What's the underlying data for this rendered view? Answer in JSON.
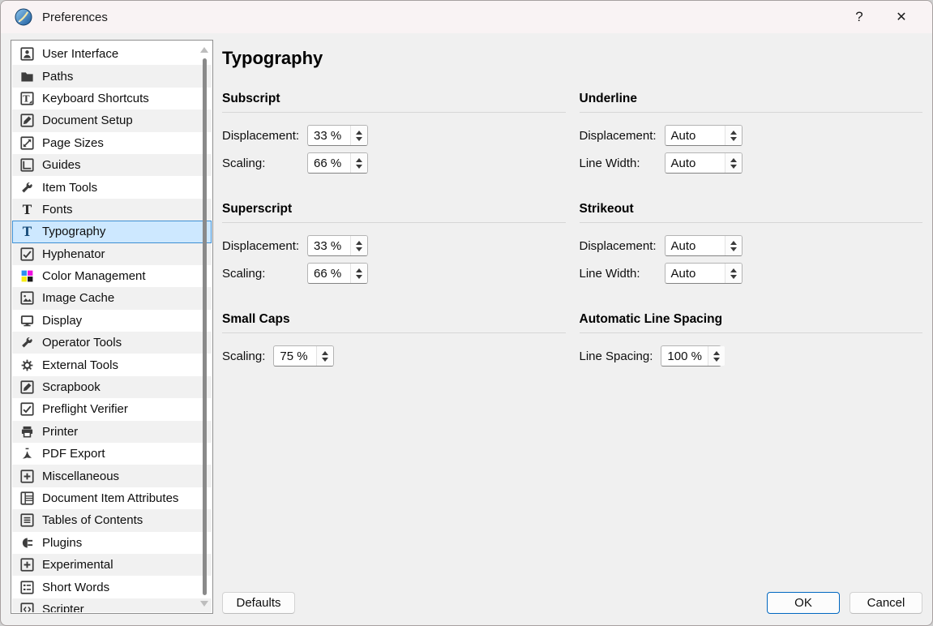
{
  "window": {
    "title": "Preferences",
    "help_label": "?",
    "close_label": "✕",
    "app_icon": "scribus-logo-icon"
  },
  "sidebar": {
    "selected_index": 8,
    "items": [
      {
        "label": "User Interface",
        "icon": "user-interface-icon"
      },
      {
        "label": "Paths",
        "icon": "paths-folder-icon"
      },
      {
        "label": "Keyboard Shortcuts",
        "icon": "keyboard-shortcuts-icon"
      },
      {
        "label": "Document Setup",
        "icon": "document-setup-icon"
      },
      {
        "label": "Page Sizes",
        "icon": "page-sizes-icon"
      },
      {
        "label": "Guides",
        "icon": "guides-icon"
      },
      {
        "label": "Item Tools",
        "icon": "item-tools-wrench-icon"
      },
      {
        "label": "Fonts",
        "icon": "fonts-icon"
      },
      {
        "label": "Typography",
        "icon": "typography-icon"
      },
      {
        "label": "Hyphenator",
        "icon": "hyphenator-icon"
      },
      {
        "label": "Color Management",
        "icon": "color-management-icon"
      },
      {
        "label": "Image Cache",
        "icon": "image-cache-icon"
      },
      {
        "label": "Display",
        "icon": "display-monitor-icon"
      },
      {
        "label": "Operator Tools",
        "icon": "operator-tools-wrench-icon"
      },
      {
        "label": "External Tools",
        "icon": "external-tools-gear-icon"
      },
      {
        "label": "Scrapbook",
        "icon": "scrapbook-icon"
      },
      {
        "label": "Preflight Verifier",
        "icon": "preflight-verifier-icon"
      },
      {
        "label": "Printer",
        "icon": "printer-icon"
      },
      {
        "label": "PDF Export",
        "icon": "pdf-export-icon"
      },
      {
        "label": "Miscellaneous",
        "icon": "miscellaneous-plus-icon"
      },
      {
        "label": "Document Item Attributes",
        "icon": "document-item-attributes-icon"
      },
      {
        "label": "Tables of Contents",
        "icon": "tables-of-contents-icon"
      },
      {
        "label": "Plugins",
        "icon": "plugins-plug-icon"
      },
      {
        "label": "Experimental",
        "icon": "experimental-plus-icon"
      },
      {
        "label": "Short Words",
        "icon": "short-words-icon"
      },
      {
        "label": "Scripter",
        "icon": "scripter-icon"
      }
    ]
  },
  "panel": {
    "title": "Typography",
    "sections": [
      {
        "id": "subscript",
        "title": "Subscript",
        "column": "left",
        "fields": [
          {
            "label": "Displacement:",
            "value": "33 %"
          },
          {
            "label": "Scaling:",
            "value": "66 %"
          }
        ]
      },
      {
        "id": "underline",
        "title": "Underline",
        "column": "right",
        "fields": [
          {
            "label": "Displacement:",
            "value": "Auto"
          },
          {
            "label": "Line Width:",
            "value": "Auto"
          }
        ]
      },
      {
        "id": "superscript",
        "title": "Superscript",
        "column": "left",
        "fields": [
          {
            "label": "Displacement:",
            "value": "33 %"
          },
          {
            "label": "Scaling:",
            "value": "66 %"
          }
        ]
      },
      {
        "id": "strikeout",
        "title": "Strikeout",
        "column": "right",
        "fields": [
          {
            "label": "Displacement:",
            "value": "Auto"
          },
          {
            "label": "Line Width:",
            "value": "Auto"
          }
        ]
      },
      {
        "id": "small-caps",
        "title": "Small Caps",
        "column": "left",
        "fields": [
          {
            "label": "Scaling:",
            "value": "75 %"
          }
        ]
      },
      {
        "id": "automatic-line-spacing",
        "title": "Automatic Line Spacing",
        "column": "right",
        "fields": [
          {
            "label": "Line Spacing:",
            "value": "100 %"
          }
        ]
      }
    ]
  },
  "footer": {
    "defaults_label": "Defaults",
    "ok_label": "OK",
    "cancel_label": "Cancel"
  },
  "colors": {
    "accent": "#0067c0",
    "selection_bg": "#cde8ff",
    "selection_border": "#3d8fd3",
    "titlebar_bg": "#f9f3f4"
  }
}
